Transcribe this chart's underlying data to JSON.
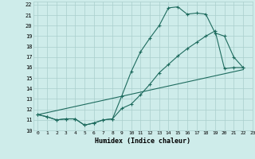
{
  "xlabel": "Humidex (Indice chaleur)",
  "xlim": [
    -0.5,
    23
  ],
  "ylim": [
    10,
    22.3
  ],
  "background_color": "#ceecea",
  "grid_color": "#aacfcc",
  "line_color": "#1e6b5e",
  "curve1_x": [
    0,
    1,
    2,
    3,
    4,
    5,
    6,
    7,
    8,
    9,
    10,
    11,
    12,
    13,
    14,
    15,
    16,
    17,
    18,
    19,
    20,
    21,
    22
  ],
  "curve1_y": [
    11.5,
    11.3,
    11.0,
    11.1,
    11.1,
    10.5,
    10.7,
    11.0,
    11.1,
    13.3,
    15.6,
    17.5,
    18.8,
    20.0,
    21.7,
    21.8,
    21.1,
    21.2,
    21.1,
    19.3,
    19.0,
    17.0,
    16.0
  ],
  "curve2_x": [
    0,
    1,
    2,
    3,
    4,
    5,
    6,
    7,
    8,
    9,
    10,
    11,
    12,
    13,
    14,
    15,
    16,
    17,
    18,
    19,
    20,
    21,
    22
  ],
  "curve2_y": [
    11.5,
    11.3,
    11.0,
    11.1,
    11.1,
    10.5,
    10.7,
    11.0,
    11.1,
    12.1,
    12.5,
    13.4,
    14.4,
    15.5,
    16.3,
    17.1,
    17.8,
    18.4,
    19.0,
    19.5,
    15.9,
    16.0,
    16.0
  ],
  "curve3_x": [
    0,
    22
  ],
  "curve3_y": [
    11.5,
    15.8
  ]
}
